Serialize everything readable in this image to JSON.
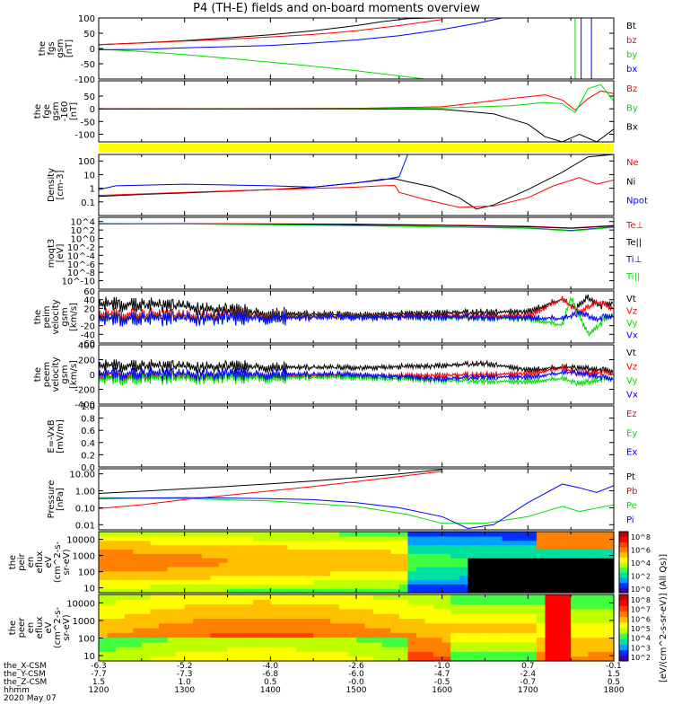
{
  "title": "P4 (TH-E) fields and on-board moments overview",
  "date_label": "2020 May 07",
  "time_axis": {
    "row_labels": [
      "the_X-CSM",
      "the_Y-CSM",
      "the_Z-CSM",
      "hhmm"
    ],
    "columns": [
      {
        "x_csm": "-6.3",
        "y_csm": "-7.7",
        "z_csm": "1.5",
        "hhmm": "1200"
      },
      {
        "x_csm": "-5.2",
        "y_csm": "-7.3",
        "z_csm": "1.0",
        "hhmm": "1300"
      },
      {
        "x_csm": "-4.0",
        "y_csm": "-6.8",
        "z_csm": "0.5",
        "hhmm": "1400"
      },
      {
        "x_csm": "-2.6",
        "y_csm": "-6.0",
        "z_csm": "-0.0",
        "hhmm": "1500"
      },
      {
        "x_csm": "-1.0",
        "y_csm": "-4.7",
        "z_csm": "-0.5",
        "hhmm": "1600"
      },
      {
        "x_csm": "0.7",
        "y_csm": "-2.4",
        "z_csm": "-0.7",
        "hhmm": "1700"
      },
      {
        "x_csm": "-0.1",
        "y_csm": "1.5",
        "z_csm": "0.5",
        "hhmm": "1800"
      }
    ]
  },
  "colorbar_label": "[eV/(cm^2-s-sr-eV)] (All Qs)]",
  "colorbar_ticks": [
    "10^8",
    "10^6",
    "10^4",
    "10^2",
    "10^0"
  ],
  "colorbar_ticks_2": [
    "10^8",
    "10^7",
    "10^6",
    "10^5",
    "10^4",
    "10^3",
    "10^2"
  ],
  "colors": {
    "black": "#000000",
    "red": "#ff0000",
    "green": "#00dd00",
    "blue": "#0000ff",
    "yellow": "#ffff00"
  },
  "chart_data": [
    {
      "type": "line",
      "id": "fgs",
      "ylabel": [
        "the",
        "fgs",
        "gsm",
        "[nT]"
      ],
      "ylim": [
        -100,
        100
      ],
      "yticks": [
        "100",
        "50",
        "0",
        "-50",
        "-100"
      ],
      "legend": [
        {
          "label": "Bt",
          "color": "black"
        },
        {
          "label": "bz",
          "color": "red"
        },
        {
          "label": "by",
          "color": "green"
        },
        {
          "label": "bx",
          "color": "blue"
        }
      ],
      "series": [
        {
          "name": "Bt",
          "color": "black",
          "x": [
            1200,
            1230,
            1260,
            1300,
            1350,
            1400,
            1450,
            1500,
            1530,
            1560,
            1590
          ],
          "y": [
            12,
            16,
            20,
            26,
            35,
            45,
            58,
            75,
            88,
            98,
            100
          ]
        },
        {
          "name": "bz",
          "color": "red",
          "x": [
            1200,
            1250,
            1300,
            1350,
            1400,
            1450,
            1500,
            1550,
            1600
          ],
          "y": [
            13,
            18,
            24,
            30,
            38,
            46,
            58,
            75,
            95
          ]
        },
        {
          "name": "by",
          "color": "green",
          "x": [
            1200,
            1250,
            1300,
            1350,
            1400,
            1450,
            1500,
            1530,
            1560,
            1580
          ],
          "y": [
            -2,
            -10,
            -20,
            -32,
            -45,
            -58,
            -73,
            -83,
            -93,
            -100
          ]
        },
        {
          "name": "bx",
          "color": "blue",
          "x": [
            1200,
            1250,
            1300,
            1350,
            1400,
            1450,
            1500,
            1550,
            1600,
            1640,
            1670
          ],
          "y": [
            -4,
            -3,
            2,
            6,
            10,
            18,
            28,
            42,
            62,
            82,
            100
          ]
        }
      ]
    },
    {
      "type": "line",
      "id": "fge",
      "ylabel": [
        "the",
        "fge",
        "gsm",
        "-160",
        "[nT]"
      ],
      "ylim": [
        -130,
        110
      ],
      "yticks": [
        "50",
        "0",
        "-50",
        "-100"
      ],
      "legend": [
        {
          "label": "Bz",
          "color": "red"
        },
        {
          "label": "By",
          "color": "green"
        },
        {
          "label": "Bx",
          "color": "black"
        }
      ],
      "series": [
        {
          "name": "Bz",
          "color": "red",
          "x": [
            1200,
            1400,
            1500,
            1600,
            1680,
            1720,
            1740,
            1755,
            1770,
            1785,
            1800
          ],
          "y": [
            0,
            1,
            2,
            8,
            40,
            55,
            35,
            -5,
            40,
            70,
            60
          ]
        },
        {
          "name": "By",
          "color": "green",
          "x": [
            1200,
            1400,
            1500,
            1600,
            1680,
            1720,
            1740,
            1755,
            1770,
            1785,
            1800
          ],
          "y": [
            -1,
            0,
            1,
            3,
            12,
            25,
            20,
            -15,
            80,
            95,
            30
          ]
        },
        {
          "name": "Bx",
          "color": "black",
          "x": [
            1200,
            1400,
            1500,
            1600,
            1660,
            1700,
            1720,
            1740,
            1760,
            1780,
            1800
          ],
          "y": [
            0,
            0,
            0,
            -2,
            -20,
            -60,
            -110,
            -130,
            -100,
            -130,
            -80
          ]
        }
      ]
    },
    {
      "type": "line",
      "id": "density",
      "ylabel": [
        "Density",
        "[cm-3]"
      ],
      "ylim": [
        0.01,
        300
      ],
      "log": true,
      "yticks": [
        "100",
        "10",
        "1",
        "0.1"
      ],
      "legend": [
        {
          "label": "Ne",
          "color": "red"
        },
        {
          "label": "Ni",
          "color": "black"
        },
        {
          "label": "Npot",
          "color": "blue"
        }
      ],
      "series": [
        {
          "name": "Ni",
          "color": "black",
          "x": [
            1200,
            1250,
            1300,
            1350,
            1400,
            1450,
            1500,
            1530,
            1545,
            1560,
            1590,
            1620,
            1640,
            1660,
            1700,
            1740,
            1770,
            1800
          ],
          "y": [
            0.25,
            0.35,
            0.45,
            0.6,
            0.8,
            1.2,
            2.5,
            4.5,
            5.0,
            3.0,
            1.2,
            0.2,
            0.03,
            0.06,
            0.8,
            15,
            200,
            300
          ]
        },
        {
          "name": "Ne",
          "color": "red",
          "x": [
            1200,
            1300,
            1400,
            1500,
            1530,
            1545,
            1550,
            1580,
            1620,
            1660,
            1700,
            1730,
            1760,
            1780,
            1800
          ],
          "y": [
            0.3,
            0.5,
            0.8,
            1.2,
            1.5,
            1.6,
            0.5,
            0.15,
            0.04,
            0.05,
            0.2,
            1.5,
            6,
            2,
            4
          ]
        },
        {
          "name": "Npot",
          "color": "blue",
          "x": [
            1200,
            1220,
            1300,
            1400,
            1450,
            1500,
            1530,
            1550,
            1560
          ],
          "y": [
            0.8,
            1.5,
            2.0,
            1.5,
            1.2,
            2.5,
            4.0,
            7,
            300
          ]
        }
      ]
    },
    {
      "type": "line",
      "id": "temperature",
      "ylabel": [
        "moqt3",
        "[eV]"
      ],
      "ylim": [
        1e-12,
        100000.0
      ],
      "log": true,
      "yticks": [
        "10^4",
        "10^2",
        "10^0",
        "10^-2",
        "10^-4",
        "10^-6",
        "10^-8",
        "10^-10"
      ],
      "legend": [
        {
          "label": "Te⊥",
          "color": "red"
        },
        {
          "label": "Te||",
          "color": "black"
        },
        {
          "label": "Ti⊥",
          "color": "blue"
        },
        {
          "label": "Ti||",
          "color": "green"
        }
      ],
      "series": [
        {
          "name": "Te⊥",
          "color": "red",
          "x": [
            1200,
            1300,
            1400,
            1500,
            1600,
            1700,
            1750,
            1800
          ],
          "y": [
            3000,
            3200,
            3000,
            2500,
            1500,
            800,
            300,
            1200
          ]
        },
        {
          "name": "Te||",
          "color": "black",
          "x": [
            1200,
            1300,
            1400,
            1500,
            1600,
            1700,
            1750,
            1800
          ],
          "y": [
            2500,
            2800,
            2600,
            2000,
            1200,
            600,
            250,
            900
          ]
        },
        {
          "name": "Ti⊥",
          "color": "blue",
          "x": [
            1200,
            1300,
            1400,
            1500,
            1600,
            1700,
            1750,
            1800
          ],
          "y": [
            3500,
            3000,
            2000,
            1200,
            600,
            300,
            80,
            500
          ]
        },
        {
          "name": "Ti||",
          "color": "green",
          "x": [
            1200,
            1300,
            1400,
            1500,
            1600,
            1700,
            1750,
            1800
          ],
          "y": [
            3000,
            2500,
            1800,
            1000,
            500,
            250,
            60,
            400
          ]
        }
      ]
    },
    {
      "type": "line",
      "id": "peim",
      "ylabel": [
        "the",
        "peim",
        "velocity",
        "gsm",
        "[km/s]"
      ],
      "ylim": [
        -60,
        60
      ],
      "yticks": [
        "60",
        "40",
        "20",
        "0",
        "-20",
        "-40",
        "-60"
      ],
      "legend": [
        {
          "label": "Vt",
          "color": "black"
        },
        {
          "label": "Vz",
          "color": "red"
        },
        {
          "label": "Vy",
          "color": "green"
        },
        {
          "label": "Vx",
          "color": "blue"
        }
      ],
      "series": [
        {
          "name": "Vt",
          "color": "black",
          "x": [
            1200,
            1250,
            1300,
            1350,
            1400,
            1500,
            1600,
            1700,
            1740,
            1755,
            1770,
            1785,
            1800
          ],
          "y": [
            30,
            28,
            25,
            15,
            8,
            5,
            10,
            12,
            40,
            20,
            45,
            25,
            35
          ]
        },
        {
          "name": "Vz",
          "color": "red",
          "x": [
            1200,
            1300,
            1400,
            1500,
            1600,
            1700,
            1740,
            1760,
            1780,
            1800
          ],
          "y": [
            5,
            3,
            2,
            1,
            3,
            2,
            40,
            10,
            35,
            20
          ]
        },
        {
          "name": "Vy",
          "color": "green",
          "x": [
            1200,
            1300,
            1400,
            1500,
            1600,
            1700,
            1740,
            1750,
            1770,
            1800
          ],
          "y": [
            -3,
            -2,
            -1,
            0,
            -2,
            -4,
            -20,
            45,
            -40,
            10
          ]
        },
        {
          "name": "Vx",
          "color": "blue",
          "x": [
            1200,
            1300,
            1400,
            1500,
            1600,
            1700,
            1740,
            1760,
            1780,
            1800
          ],
          "y": [
            -5,
            -3,
            -2,
            -1,
            0,
            -2,
            -5,
            10,
            -5,
            5
          ]
        }
      ]
    },
    {
      "type": "line",
      "id": "peem",
      "ylabel": [
        "the",
        "peem",
        "velocity",
        "gsm",
        "[km/s]"
      ],
      "ylim": [
        -400,
        400
      ],
      "yticks": [
        "400",
        "200",
        "0",
        "-200",
        "-400"
      ],
      "legend": [
        {
          "label": "Vt",
          "color": "black"
        },
        {
          "label": "Vz",
          "color": "red"
        },
        {
          "label": "Vy",
          "color": "green"
        },
        {
          "label": "Vx",
          "color": "blue"
        }
      ],
      "series": [
        {
          "name": "Vt",
          "color": "black",
          "x": [
            1200,
            1300,
            1400,
            1500,
            1600,
            1650,
            1700,
            1750,
            1800
          ],
          "y": [
            120,
            110,
            100,
            90,
            120,
            150,
            60,
            100,
            50
          ]
        },
        {
          "name": "Vz",
          "color": "red",
          "x": [
            1200,
            1300,
            1400,
            1500,
            1600,
            1700,
            1740,
            1760,
            1800
          ],
          "y": [
            -40,
            -30,
            -20,
            -20,
            -10,
            10,
            80,
            20,
            30
          ]
        },
        {
          "name": "Vy",
          "color": "green",
          "x": [
            1200,
            1300,
            1400,
            1500,
            1600,
            1700,
            1740,
            1760,
            1800
          ],
          "y": [
            -60,
            -50,
            -40,
            -40,
            -80,
            -100,
            -60,
            -120,
            -40
          ]
        },
        {
          "name": "Vx",
          "color": "blue",
          "x": [
            1200,
            1300,
            1400,
            1500,
            1600,
            1650,
            1700,
            1750,
            1800
          ],
          "y": [
            10,
            5,
            5,
            0,
            -60,
            -30,
            -40,
            30,
            -60
          ]
        }
      ]
    },
    {
      "type": "line",
      "id": "efield",
      "ylabel": [
        "E=-VxB",
        "[mV/m]"
      ],
      "ylim": [
        0,
        1
      ],
      "yticks": [
        "1.0",
        "0.8",
        "0.6",
        "0.4",
        "0.2",
        "0.0"
      ],
      "legend": [
        {
          "label": "Ez",
          "color": "red"
        },
        {
          "label": "Ey",
          "color": "green"
        },
        {
          "label": "Ex",
          "color": "blue"
        }
      ],
      "series": []
    },
    {
      "type": "line",
      "id": "pressure",
      "ylabel": [
        "Pressure",
        "[nPa]"
      ],
      "ylim": [
        0.005,
        20
      ],
      "log": true,
      "yticks": [
        "10.00",
        "1.00",
        "0.10",
        "0.01"
      ],
      "legend": [
        {
          "label": "Pt",
          "color": "black"
        },
        {
          "label": "Pb",
          "color": "red"
        },
        {
          "label": "Pe",
          "color": "green"
        },
        {
          "label": "Pi",
          "color": "blue"
        }
      ],
      "series": [
        {
          "name": "Pt",
          "color": "black",
          "x": [
            1200,
            1250,
            1300,
            1350,
            1400,
            1450,
            1500,
            1550,
            1600
          ],
          "y": [
            0.7,
            0.95,
            1.3,
            1.8,
            2.6,
            3.8,
            6,
            10,
            18
          ]
        },
        {
          "name": "Pb",
          "color": "red",
          "x": [
            1200,
            1250,
            1300,
            1350,
            1400,
            1450,
            1500,
            1550,
            1600
          ],
          "y": [
            0.09,
            0.15,
            0.3,
            0.55,
            1.0,
            1.8,
            3.5,
            7,
            14
          ]
        },
        {
          "name": "Pe",
          "color": "green",
          "x": [
            1200,
            1300,
            1400,
            1500,
            1560,
            1600,
            1650,
            1700,
            1740,
            1760,
            1800
          ],
          "y": [
            0.4,
            0.35,
            0.25,
            0.12,
            0.04,
            0.012,
            0.012,
            0.03,
            0.12,
            0.06,
            0.15
          ]
        },
        {
          "name": "Pi",
          "color": "blue",
          "x": [
            1200,
            1300,
            1400,
            1450,
            1500,
            1550,
            1600,
            1630,
            1660,
            1700,
            1740,
            1760,
            1780,
            1800
          ],
          "y": [
            0.35,
            0.4,
            0.35,
            0.3,
            0.2,
            0.1,
            0.03,
            0.006,
            0.01,
            0.2,
            2.5,
            1.5,
            0.8,
            2.0
          ]
        }
      ]
    },
    {
      "type": "heatmap",
      "id": "peir",
      "ylabel": [
        "the",
        "peir",
        "en",
        "eflux",
        "eV",
        "(cm^2-s-",
        "sr-eV)"
      ],
      "ylim": [
        5,
        30000
      ],
      "log": true,
      "yticks": [
        "10000",
        "1000",
        "100",
        "10"
      ]
    },
    {
      "type": "heatmap",
      "id": "peer",
      "ylabel": [
        "the",
        "peer",
        "en",
        "eflux",
        "eV",
        "(cm^2-s-",
        "sr-eV)"
      ],
      "ylim": [
        5,
        30000
      ],
      "log": true,
      "yticks": [
        "10000",
        "1000",
        "100",
        "10"
      ]
    }
  ]
}
